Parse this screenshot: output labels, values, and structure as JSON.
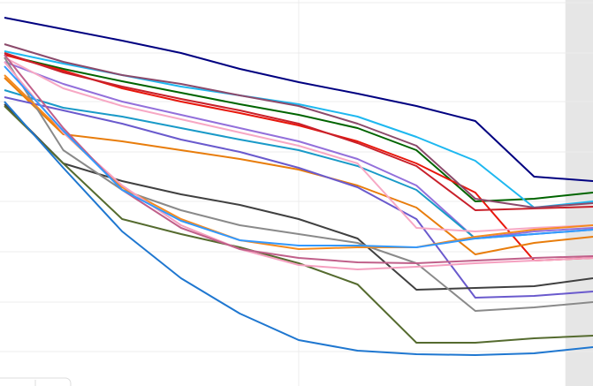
{
  "chart_data": {
    "type": "line",
    "x": [
      0,
      1,
      2,
      3,
      4,
      5,
      6,
      7,
      8,
      9,
      10
    ],
    "xlim": [
      -0.075,
      10
    ],
    "ylim": [
      0,
      437
    ],
    "xticks": [
      5
    ],
    "yticks": [
      39,
      95,
      152,
      209,
      265,
      322,
      377,
      434
    ],
    "grid": true,
    "shaded_xrange": [
      9.53,
      10
    ],
    "series": [
      {
        "color": "#000080",
        "values": [
          417,
          404,
          391,
          377,
          359,
          344,
          331,
          317,
          300,
          237,
          232
        ]
      },
      {
        "color": "#006400",
        "values": [
          375,
          359,
          345,
          332,
          319,
          307,
          292,
          267,
          209,
          212,
          219
        ]
      },
      {
        "color": "#1eb8f0",
        "values": [
          379,
          365,
          352,
          339,
          329,
          319,
          305,
          282,
          255,
          202,
          209
        ]
      },
      {
        "color": "#e8170c",
        "values": [
          375,
          357,
          337,
          322,
          309,
          295,
          277,
          252,
          219,
          142,
          145
        ]
      },
      {
        "color": "#c8202a",
        "values": [
          377,
          355,
          339,
          325,
          312,
          297,
          275,
          249,
          199,
          201,
          203
        ]
      },
      {
        "color": "#8b4a6b",
        "values": [
          387,
          367,
          352,
          342,
          329,
          317,
          297,
          272,
          212,
          202,
          207
        ]
      },
      {
        "color": "#9370db",
        "values": [
          367,
          342,
          322,
          307,
          292,
          277,
          257,
          227,
          167,
          175,
          179
        ]
      },
      {
        "color": "#1a9ac8",
        "values": [
          335,
          315,
          305,
          292,
          279,
          267,
          249,
          222,
          167,
          172,
          177
        ]
      },
      {
        "color": "#e87d0c",
        "values": [
          349,
          285,
          277,
          267,
          257,
          245,
          227,
          202,
          149,
          162,
          169
        ]
      },
      {
        "color": "#6a5acd",
        "values": [
          327,
          312,
          297,
          279,
          265,
          247,
          225,
          189,
          100,
          102,
          107
        ]
      },
      {
        "color": "#f7a8c4",
        "values": [
          372,
          337,
          317,
          302,
          287,
          272,
          252,
          179,
          175,
          179,
          182
        ]
      },
      {
        "color": "#404040",
        "values": [
          319,
          252,
          232,
          217,
          205,
          189,
          167,
          109,
          111,
          113,
          122
        ]
      },
      {
        "color": "#8a8a8a",
        "values": [
          372,
          267,
          222,
          199,
          182,
          172,
          162,
          139,
          85,
          89,
          95
        ]
      },
      {
        "color": "#556b2f",
        "values": [
          317,
          252,
          189,
          172,
          157,
          139,
          115,
          49,
          49,
          54,
          57
        ]
      },
      {
        "color": "#1f77d0",
        "values": [
          322,
          247,
          175,
          122,
          82,
          52,
          40,
          36,
          35,
          37,
          44
        ]
      },
      {
        "color": "#f58a1f",
        "values": [
          352,
          287,
          225,
          189,
          165,
          155,
          157,
          157,
          169,
          177,
          182
        ]
      },
      {
        "color": "#f5a0c0",
        "values": [
          367,
          287,
          227,
          182,
          155,
          137,
          132,
          135,
          139,
          142,
          145
        ]
      },
      {
        "color": "#c0608a",
        "values": [
          375,
          292,
          222,
          179,
          155,
          145,
          140,
          139,
          142,
          145,
          147
        ]
      },
      {
        "color": "#3399ff",
        "values": [
          362,
          289,
          222,
          187,
          165,
          159,
          159,
          157,
          167,
          172,
          177
        ]
      }
    ]
  }
}
